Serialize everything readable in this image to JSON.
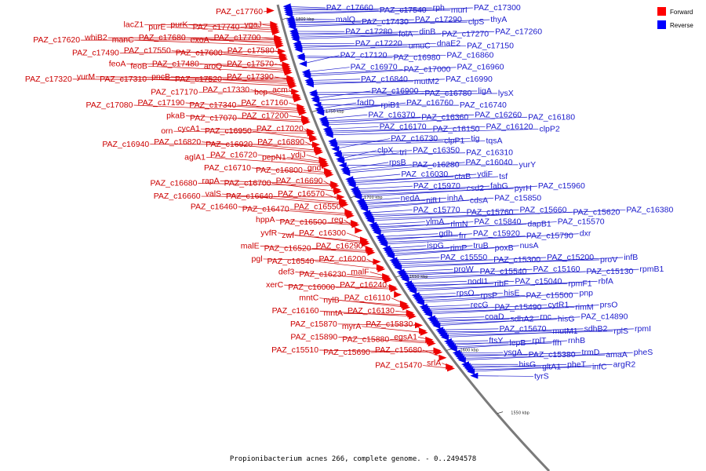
{
  "title": "Propionibacterium acnes 266, complete genome. - 0..2494578",
  "legend": [
    {
      "label": "Forward",
      "color": "#ff0000"
    },
    {
      "label": "Reverse",
      "color": "#0000ff"
    }
  ],
  "ticks": [
    "1800 kbp",
    "1750 kbp",
    "1700 kbp",
    "1650 kbp",
    "1600 kbp",
    "1550 kbp"
  ],
  "colors": {
    "forward": "#cc0000",
    "reverse": "#1a1acc",
    "backbone": "#7a7a7a"
  },
  "forward_labels": [
    "PAZ_c17760",
    "ygaJ",
    "PAZ_c17740",
    "purK",
    "purE",
    "lacZ1",
    "PAZ_c17700",
    "exoA",
    "PAZ_c17680",
    "manC",
    "whiB2",
    "PAZ_c17620",
    "PAZ_c17580",
    "PAZ_c17600",
    "PAZ_c17550",
    "PAZ_c17490",
    "PAZ_c17570",
    "aroQ",
    "PAZ_c17480",
    "feoB",
    "feoA",
    "PAZ_c17390",
    "PAZ_c17520",
    "pncB",
    "PAZ_c17310",
    "yurM",
    "PAZ_c17320",
    "acm",
    "bcp",
    "PAZ_c17330",
    "PAZ_c17170",
    "PAZ_c17160",
    "PAZ_c17340",
    "PAZ_c17190",
    "PAZ_c17080",
    "PAZ_c17200",
    "PAZ_c17070",
    "pkaB",
    "PAZ_c17020",
    "PAZ_c16950",
    "cycA1",
    "orn",
    "PAZ_c16890",
    "PAZ_c16920",
    "PAZ_c16820",
    "PAZ_c16940",
    "ydjJ",
    "pepN1",
    "PAZ_c16720",
    "aglA1",
    "gnd",
    "PAZ_c16800",
    "PAZ_c16710",
    "PAZ_c16690",
    "PAZ_c16700",
    "rapA",
    "PAZ_c16680",
    "PAZ_c16570",
    "PAZ_c16640",
    "valS",
    "PAZ_c16660",
    "PAZ_c16550",
    "PAZ_c16470",
    "PAZ_c16460",
    "reg",
    "PAZ_c16500",
    "hppA",
    "PAZ_c16300",
    "zwf",
    "yvfR",
    "PAZ_c16290",
    "PAZ_c16520",
    "malE",
    "PAZ_c16200",
    "PAZ_c16540",
    "pgl",
    "malF",
    "PAZ_c16230",
    "def3",
    "PAZ_c16240",
    "PAZ_c16000",
    "xerC",
    "PAZ_c16110",
    "nylB",
    "mntC",
    "PAZ_c16130",
    "mntA",
    "PAZ_c16160",
    "PAZ_c15830",
    "myrA",
    "PAZ_c15870",
    "egsA1",
    "PAZ_c15880",
    "PAZ_c15890",
    "PAZ_c15680",
    "PAZ_c15690",
    "PAZ_c15510",
    "srlA",
    "PAZ_c15470"
  ],
  "reverse_labels": [
    "PAZ_c17660",
    "PAZ_c17540",
    "rph",
    "murI",
    "PAZ_c17300",
    "malQ",
    "PAZ_c17430",
    "PAZ_c17290",
    "clpS",
    "thyA",
    "PAZ_c17280",
    "folA",
    "dinB",
    "PAZ_c17270",
    "PAZ_c17260",
    "PAZ_c17220",
    "umuC",
    "dnaE2",
    "PAZ_c17150",
    "PAZ_c17120",
    "PAZ_c16980",
    "PAZ_c16860",
    "PAZ_c16970",
    "PAZ_c17000",
    "PAZ_c16960",
    "PAZ_c16840",
    "mutM2",
    "PAZ_c16990",
    "PAZ_c16900",
    "PAZ_c16780",
    "ligA",
    "lysX",
    "fadD",
    "rpiB1",
    "PAZ_c16760",
    "PAZ_c16740",
    "PAZ_c16370",
    "PAZ_c16360",
    "PAZ_c16260",
    "PAZ_c16180",
    "PAZ_c16170",
    "PAZ_c16150",
    "PAZ_c16120",
    "clpP2",
    "PAZ_c16730",
    "clpP1",
    "tig",
    "tqsA",
    "clpX",
    "tri",
    "PAZ_c16350",
    "PAZ_c16310",
    "rpsB",
    "PAZ_c16280",
    "PAZ_c16040",
    "yurY",
    "PAZ_c16030",
    "ctaB",
    "ydiF",
    "tsf",
    "PAZ_c15970",
    "csd2",
    "fabG",
    "pyrH",
    "PAZ_c15960",
    "nedA",
    "nifU",
    "inhA",
    "cdsA",
    "PAZ_c15850",
    "PAZ_c15770",
    "PAZ_c15760",
    "PAZ_c15660",
    "PAZ_c15620",
    "PAZ_c16380",
    "ylmA",
    "rlmN",
    "PAZ_c15840",
    "dapB1",
    "PAZ_c15570",
    "gdh",
    "frr",
    "PAZ_c15920",
    "PAZ_c15790",
    "dxr",
    "ispG",
    "rimP",
    "truB",
    "poxB",
    "nusA",
    "PAZ_c15550",
    "PAZ_c15300",
    "PAZ_c15200",
    "proV",
    "infB",
    "proW",
    "PAZ_c15540",
    "PAZ_c15160",
    "PAZ_c15130",
    "rpmB1",
    "nodI1",
    "ribF",
    "PAZ_c15040",
    "rpmF1",
    "rbfA",
    "rpsO",
    "rpsP",
    "hisE",
    "PAZ_c15500",
    "pnp",
    "recG",
    "PAZ_c15490",
    "cytR1",
    "rimM",
    "prsO",
    "coaD",
    "sdhA2",
    "rnc",
    "hisG",
    "PAZ_c14890",
    "PAZ_c15670",
    "mutM1",
    "sdhB2",
    "rplS",
    "rpmI",
    "ftsY",
    "lepB",
    "rplT",
    "ffh",
    "rnhB",
    "ysgA",
    "PAZ_c15380",
    "trmD",
    "amaA",
    "pheS",
    "hisG",
    "gltA1",
    "pheT",
    "infC",
    "argR2",
    "tyrS"
  ]
}
